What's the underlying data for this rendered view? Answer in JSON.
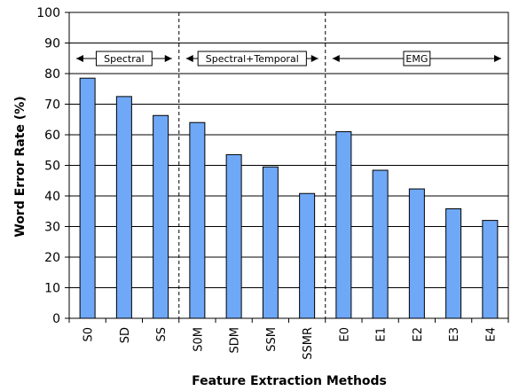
{
  "chart_data": {
    "type": "bar",
    "xlabel": "Feature Extraction Methods",
    "ylabel": "Word Error Rate (%)",
    "ylim": [
      0,
      100
    ],
    "yticks": [
      0,
      10,
      20,
      30,
      40,
      50,
      60,
      70,
      80,
      90,
      100
    ],
    "grid": "horizontal",
    "categories": [
      "S0",
      "SD",
      "SS",
      "S0M",
      "SDM",
      "SSM",
      "SSMR",
      "E0",
      "E1",
      "E2",
      "E3",
      "E4"
    ],
    "values": [
      78.5,
      72.5,
      66.3,
      64.0,
      53.5,
      49.5,
      40.8,
      61.0,
      48.4,
      42.3,
      35.8,
      32.0
    ],
    "groups": [
      {
        "label": "Spectral",
        "start": 0,
        "end": 2
      },
      {
        "label": "Spectral+Temporal",
        "start": 3,
        "end": 6
      },
      {
        "label": "EMG",
        "start": 7,
        "end": 11
      }
    ],
    "bar_color": "#6fa8f7",
    "bar_edge_color": "#000000"
  }
}
